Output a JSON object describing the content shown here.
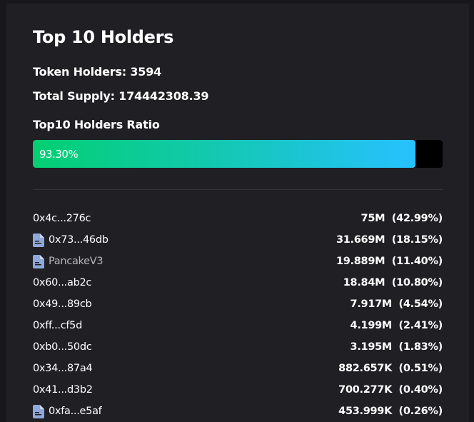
{
  "header": {
    "title": "Top 10 Holders"
  },
  "stats": {
    "token_holders": "Token Holders: 3594",
    "total_supply": "Total Supply: 174442308.39",
    "ratio_label": "Top10 Holders Ratio"
  },
  "progress": {
    "value_label": "93.30%",
    "percent": 93.3,
    "colors": {
      "start": "#03cf72",
      "end": "#27c1ff",
      "track": "#000000"
    }
  },
  "holders": [
    {
      "address": "0x4c...276c",
      "is_contract": false,
      "amount": "75M",
      "share": "(42.99%)"
    },
    {
      "address": "0x73...46db",
      "is_contract": true,
      "amount": "31.669M",
      "share": "(18.15%)"
    },
    {
      "address": "PancakeV3",
      "is_contract": true,
      "named": true,
      "amount": "19.889M",
      "share": "(11.40%)"
    },
    {
      "address": "0x60...ab2c",
      "is_contract": false,
      "amount": "18.84M",
      "share": "(10.80%)"
    },
    {
      "address": "0x49...89cb",
      "is_contract": false,
      "amount": "7.917M",
      "share": "(4.54%)"
    },
    {
      "address": "0xff...cf5d",
      "is_contract": false,
      "amount": "4.199M",
      "share": "(2.41%)"
    },
    {
      "address": "0xb0...50dc",
      "is_contract": false,
      "amount": "3.195M",
      "share": "(1.83%)"
    },
    {
      "address": "0x34...87a4",
      "is_contract": false,
      "amount": "882.657K",
      "share": "(0.51%)"
    },
    {
      "address": "0x41...d3b2",
      "is_contract": false,
      "amount": "700.277K",
      "share": "(0.40%)"
    },
    {
      "address": "0xfa...e5af",
      "is_contract": true,
      "amount": "453.999K",
      "share": "(0.26%)"
    }
  ],
  "icons": {
    "contract": "document-icon"
  },
  "colors": {
    "page_bg": "#18181c",
    "panel_bg": "#1f1f24",
    "icon": "#8ea9d8",
    "divider": "#34343b"
  }
}
